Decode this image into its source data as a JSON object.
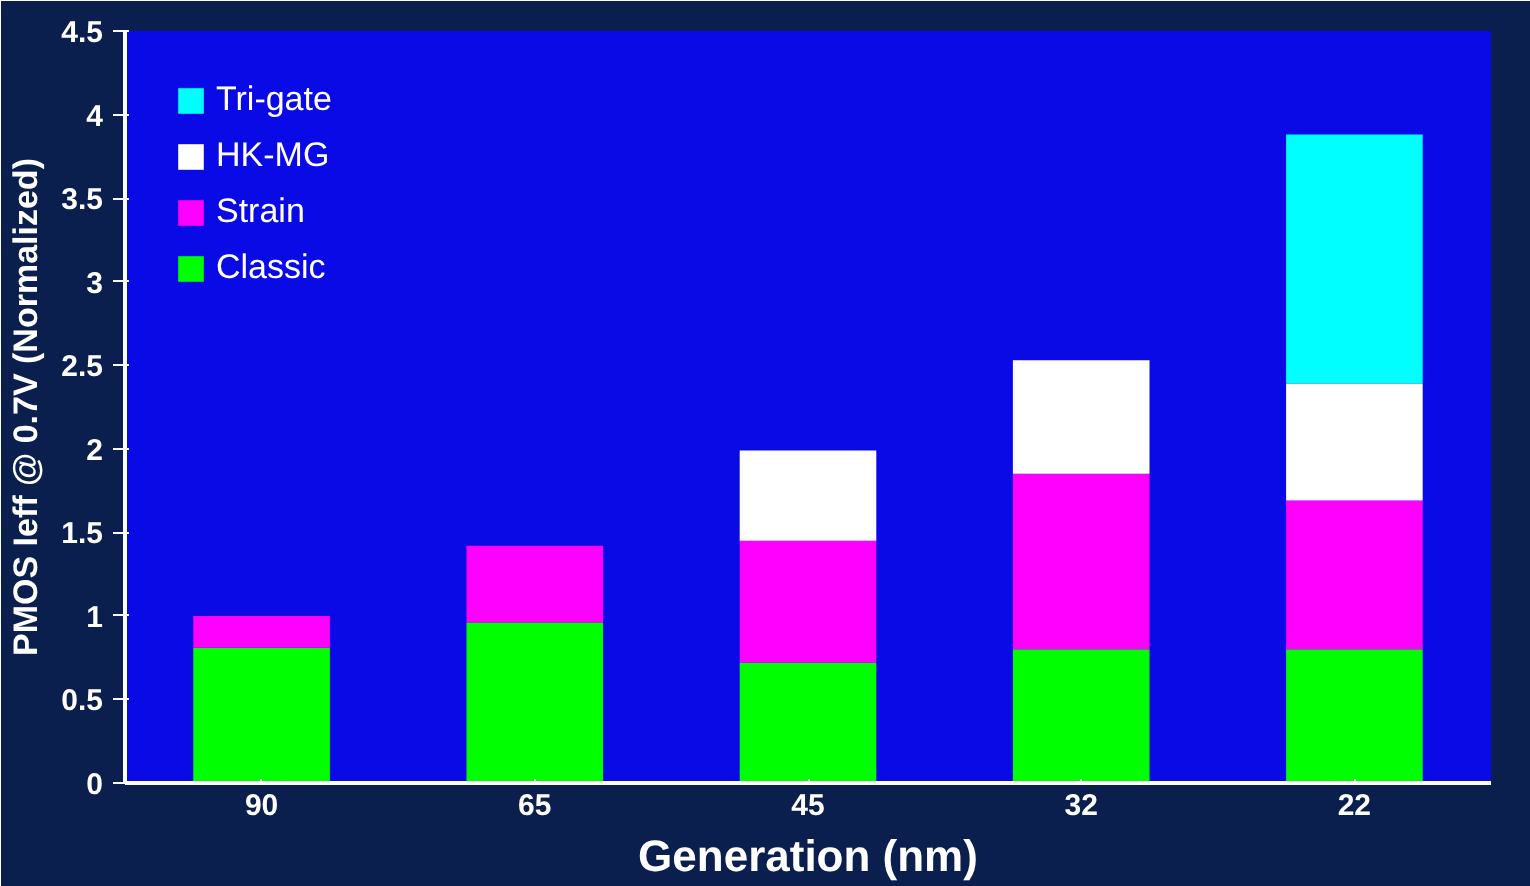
{
  "chart_data": {
    "type": "bar",
    "stacked": true,
    "xlabel": "Generation (nm)",
    "ylabel": "PMOS Ieff @ 0.7V (Normalized)",
    "categories": [
      "90",
      "65",
      "45",
      "32",
      "22"
    ],
    "series": [
      {
        "name": "Classic",
        "color": "#00ff00",
        "values": [
          0.81,
          0.96,
          0.72,
          0.8,
          0.8
        ]
      },
      {
        "name": "Strain",
        "color": "#ff00ff",
        "values": [
          0.19,
          0.46,
          0.73,
          1.05,
          0.89
        ]
      },
      {
        "name": "HK-MG",
        "color": "#ffffff",
        "values": [
          null,
          null,
          0.54,
          0.68,
          0.7
        ]
      },
      {
        "name": "Tri-gate",
        "color": "#00ffff",
        "values": [
          null,
          null,
          null,
          null,
          1.49
        ]
      }
    ],
    "ylim": [
      0,
      4.5
    ],
    "yticks": [
      0,
      0.5,
      1,
      1.5,
      2,
      2.5,
      3,
      3.5,
      4,
      4.5
    ],
    "grid": false,
    "legend": "top left"
  }
}
